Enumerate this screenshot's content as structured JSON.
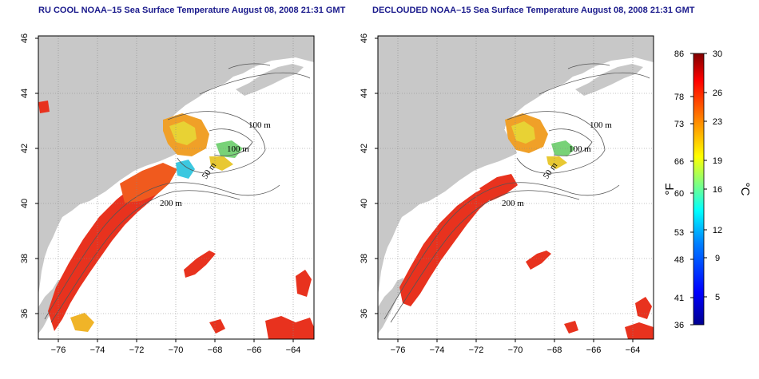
{
  "left_panel": {
    "title": "RU COOL NOAA–15 Sea Surface Temperature August 08, 2008 21:31 GMT",
    "contour_labels": [
      "100 m",
      "100 m",
      "50 m",
      "200 m"
    ]
  },
  "right_panel": {
    "title": "DECLOUDED NOAA–15 Sea Surface Temperature August 08, 2008 21:31 GMT",
    "contour_labels": [
      "100 m",
      "100 m",
      "50 m",
      "200 m"
    ]
  },
  "axes": {
    "lon_ticks": [
      "−76",
      "−74",
      "−72",
      "−70",
      "−68",
      "−66",
      "−64"
    ],
    "lat_ticks": [
      "46",
      "44",
      "42",
      "40",
      "38",
      "36"
    ],
    "lon_range": [
      -77,
      -63
    ],
    "lat_range": [
      35,
      46
    ],
    "grid": "dotted"
  },
  "colorbar": {
    "fahrenheit_label": "°F",
    "celsius_label": "°C",
    "fahrenheit_ticks": [
      "86",
      "78",
      "73",
      "66",
      "60",
      "53",
      "48",
      "41",
      "36"
    ],
    "celsius_ticks": [
      "30",
      "26",
      "23",
      "19",
      "16",
      "12",
      "9",
      "5"
    ],
    "range_celsius": [
      2,
      30
    ],
    "colors": [
      "#00008f",
      "#0000ff",
      "#0080ff",
      "#00ffff",
      "#80ff80",
      "#ffff00",
      "#ff8000",
      "#ff0000",
      "#800000"
    ]
  },
  "colors": {
    "land": "#c8c8c8",
    "ocean_background": "#ffffff",
    "title": "#1a1a8c",
    "contour": "#555555"
  }
}
